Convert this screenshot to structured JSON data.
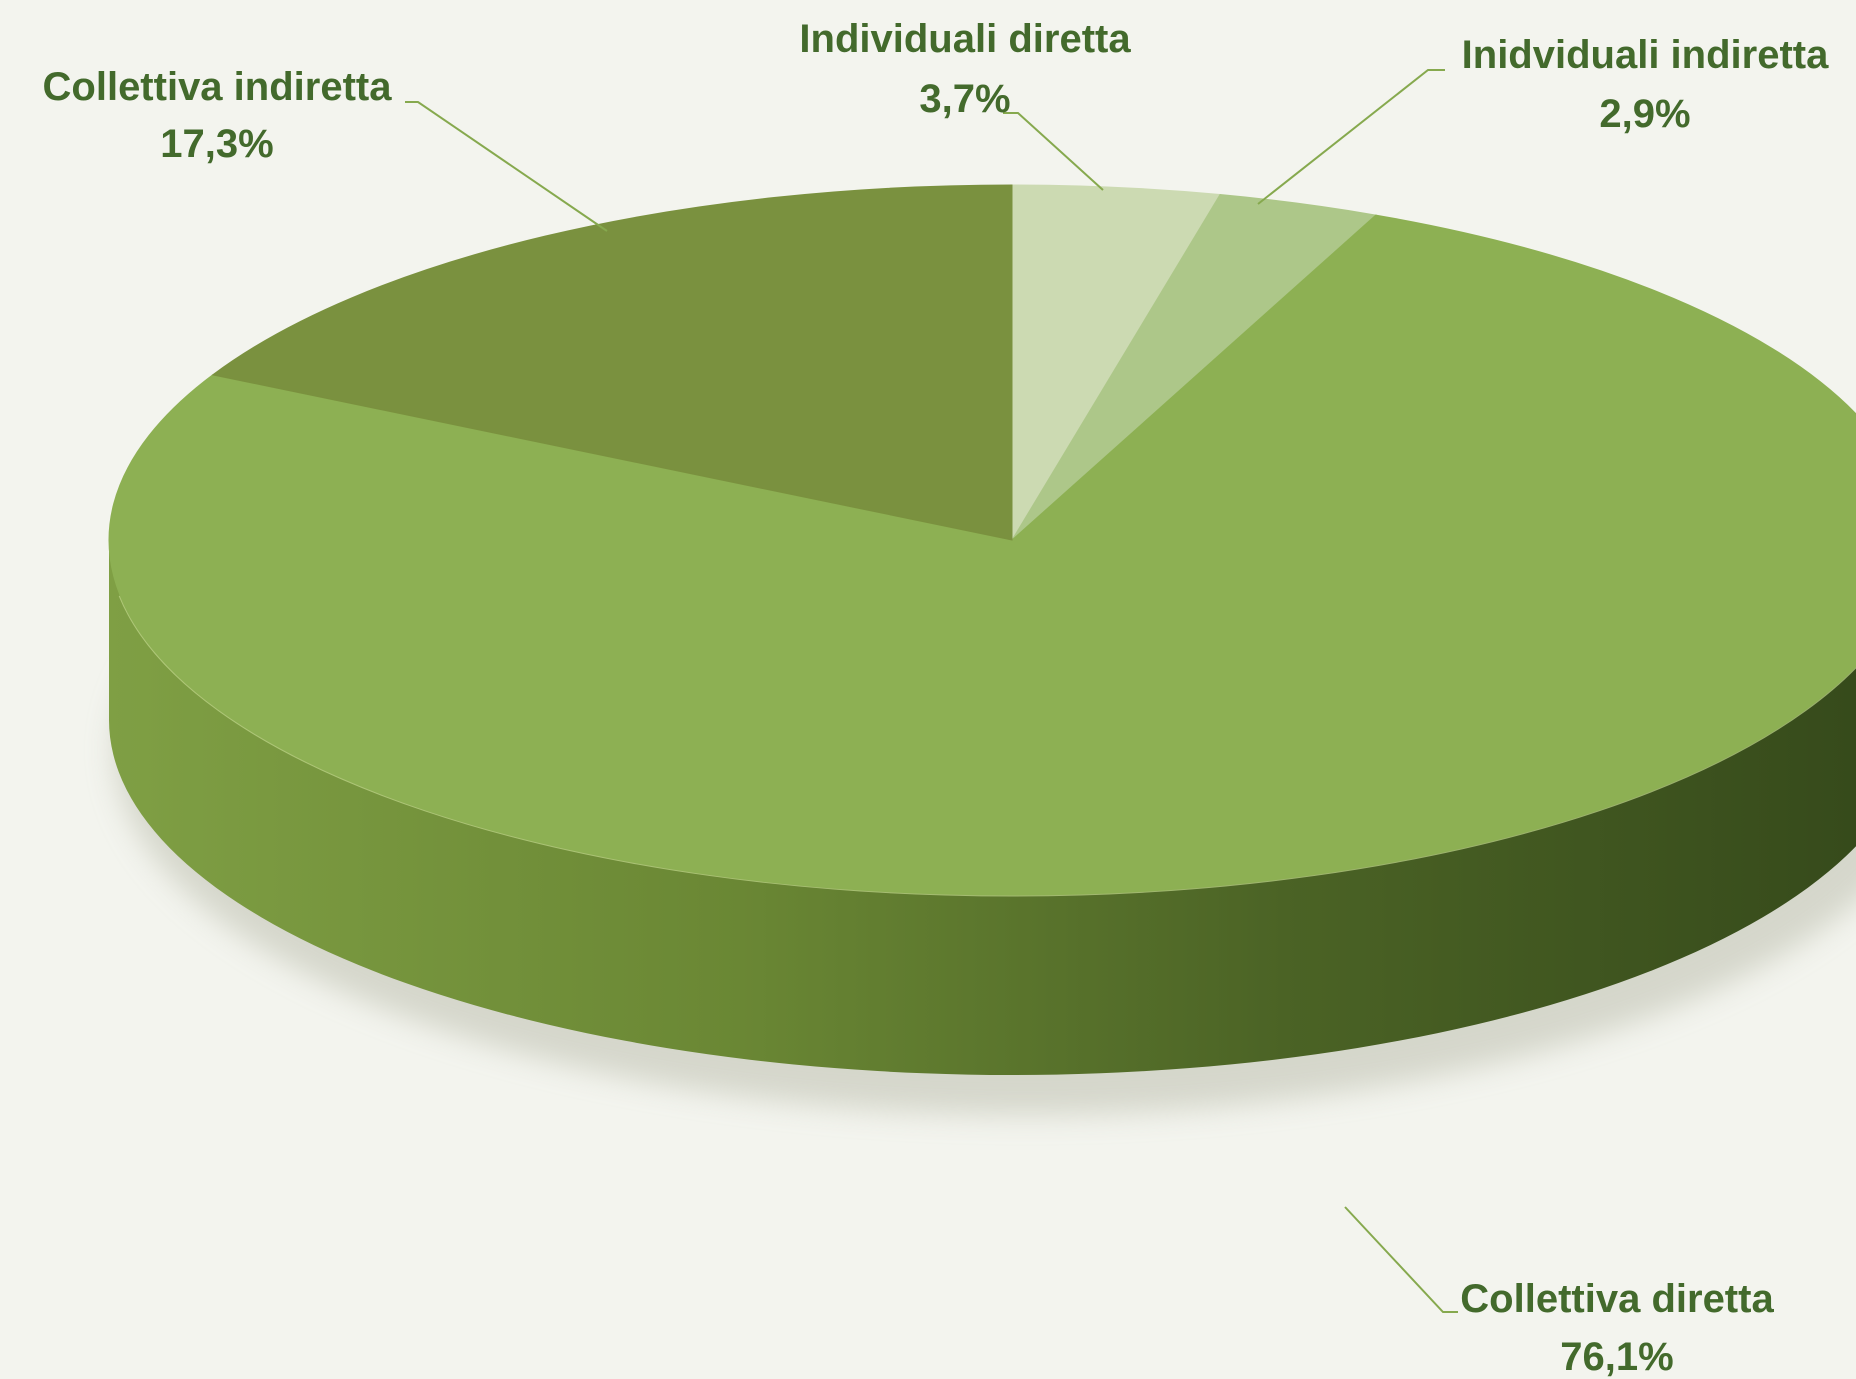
{
  "chart_data": {
    "type": "pie",
    "title": "",
    "legend": "none",
    "style": "3d",
    "categories": [
      "Individuali diretta",
      "Inidviduali indiretta",
      "Collettiva diretta",
      "Collettiva indiretta"
    ],
    "values": [
      3.7,
      2.9,
      76.1,
      17.3
    ],
    "value_labels": [
      "3,7%",
      "2,9%",
      "76,1%",
      "17,3%"
    ],
    "colors": [
      "#ccdab2",
      "#adc789",
      "#8db053",
      "#7a913f"
    ],
    "side_colors": [
      "#aab98e",
      "#90a86c",
      "#5d7a30",
      "#55702a"
    ],
    "label_color": "#436a2c",
    "leader_color": "#86a94e",
    "background": "#f3f4ee"
  }
}
